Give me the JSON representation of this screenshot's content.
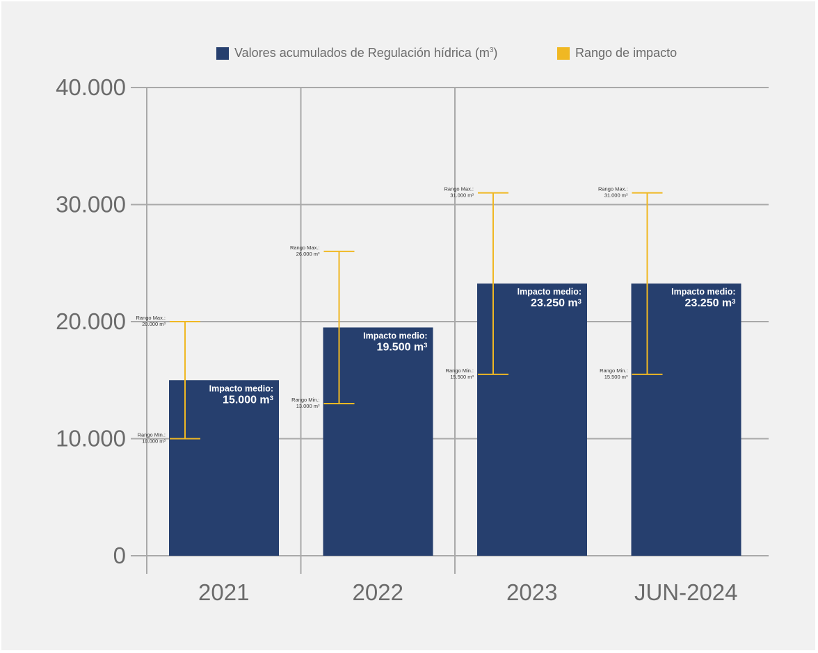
{
  "chart_data": {
    "type": "bar",
    "title": "",
    "xlabel": "",
    "ylabel": "",
    "categories": [
      "2021",
      "2022",
      "2023",
      "JUN-2024"
    ],
    "ylim": [
      0,
      40000
    ],
    "yticks": [
      0,
      10000,
      20000,
      30000,
      40000
    ],
    "ytick_labels": [
      "0",
      "10.000",
      "20.000",
      "30.000",
      "40.000"
    ],
    "grid": true,
    "legend_position": "top",
    "legend": [
      {
        "key": "bar",
        "text": "Valores acumulados de Regulación hídrica (m",
        "sup": "3",
        "tail": ")",
        "color": "#263f6e"
      },
      {
        "key": "range",
        "text": "Rango de impacto",
        "color": "#f0b823"
      }
    ],
    "series": [
      {
        "name": "Valores acumulados de Regulación hídrica (m3)",
        "color": "#263f6e",
        "values": [
          15000,
          19500,
          23250,
          23250
        ],
        "labels": [
          {
            "line1": "Impacto medio:",
            "line2": "15.000 m",
            "sup": "3"
          },
          {
            "line1": "Impacto medio:",
            "line2": "19.500 m",
            "sup": "3"
          },
          {
            "line1": "Impacto medio:",
            "line2": "23.250 m",
            "sup": "3"
          },
          {
            "line1": "Impacto medio:",
            "line2": "23.250 m",
            "sup": "3"
          }
        ]
      },
      {
        "name": "Rango de impacto",
        "color": "#f0b823",
        "max": [
          20000,
          26000,
          31000,
          31000
        ],
        "min": [
          10000,
          13000,
          15500,
          15500
        ],
        "max_labels": [
          {
            "line1": "Rango Max.:",
            "line2": "20.000  m",
            "sup": "3"
          },
          {
            "line1": "Rango Max.:",
            "line2": "26.000  m",
            "sup": "3"
          },
          {
            "line1": "Rango Max.:",
            "line2": "31.000 m",
            "sup": "3"
          },
          {
            "line1": "Rango Max.:",
            "line2": "31.000 m",
            "sup": "3"
          }
        ],
        "min_labels": [
          {
            "line1": "Rango Min.:",
            "line2": "10.000 m",
            "sup": "3"
          },
          {
            "line1": "Rango Min.:",
            "line2": "13.000  m",
            "sup": "3"
          },
          {
            "line1": "Rango Min.:",
            "line2": "15.500 m",
            "sup": "3"
          },
          {
            "line1": "Rango Min.:",
            "line2": "15.500 m",
            "sup": "3"
          }
        ]
      }
    ]
  }
}
